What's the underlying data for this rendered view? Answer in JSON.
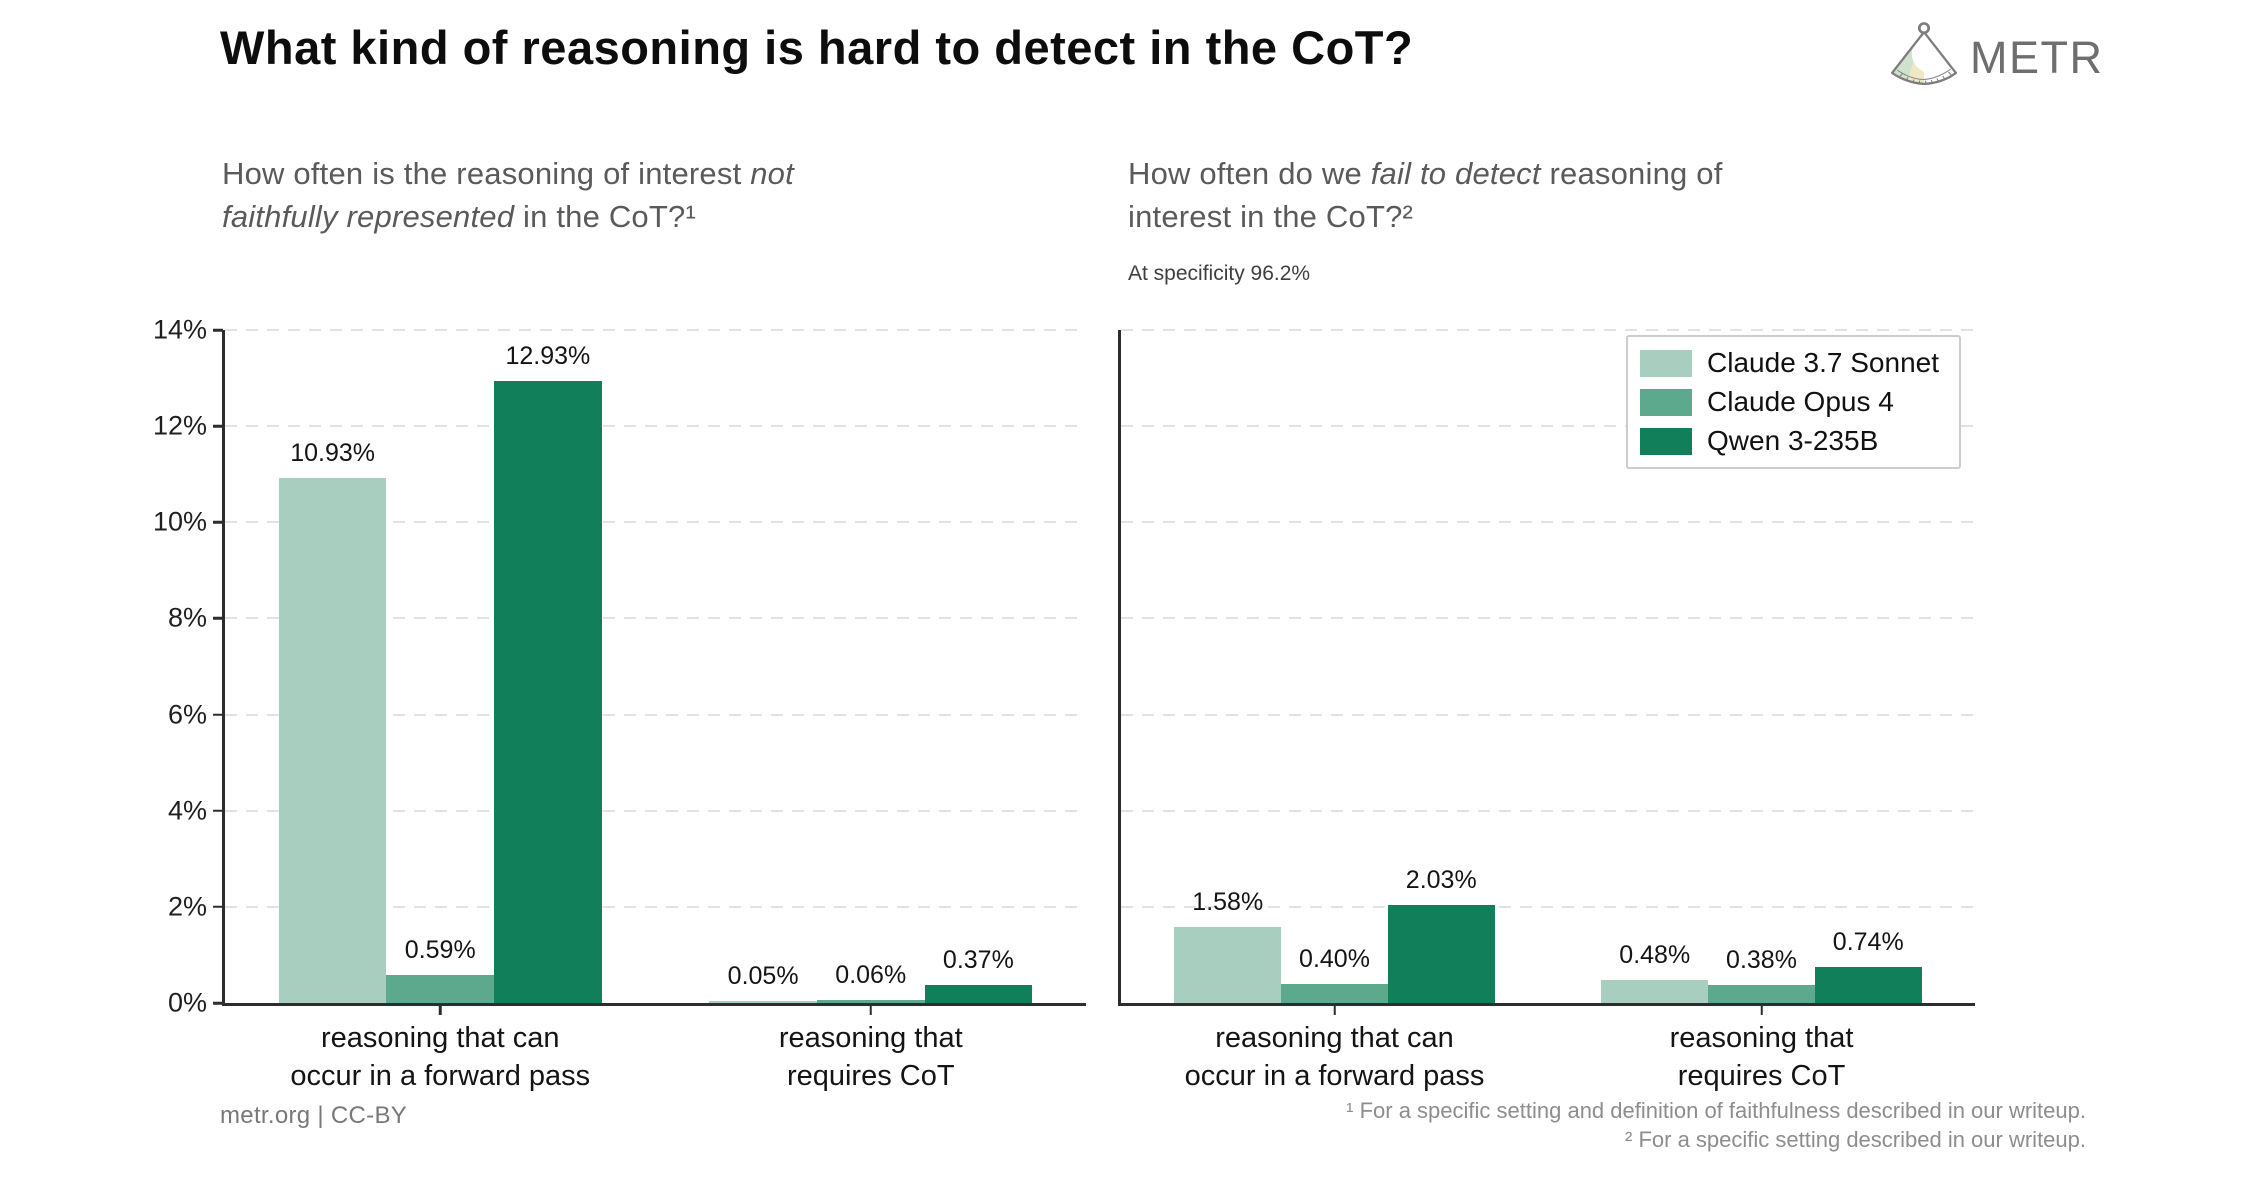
{
  "title": "What kind of reasoning is hard to detect in the CoT?",
  "logo": {
    "wordmark": "METR",
    "colors": {
      "outline": "#7d7d7d",
      "green": "#cfe2cb",
      "yellow": "#f0e8c5",
      "white": "#ffffff"
    }
  },
  "palette": {
    "axis": "#2d2d2d",
    "grid": "#e2e2e2",
    "subtitle_gray": "#5a5a5a",
    "sonnet": "#a8cec0",
    "opus": "#5ca98d",
    "qwen": "#117f5a"
  },
  "chart_data": [
    {
      "type": "bar",
      "title_parts": [
        {
          "text": "How often is the reasoning of interest ",
          "italic": false
        },
        {
          "text": "not",
          "italic": true
        },
        {
          "text": "\n",
          "italic": false
        },
        {
          "text": "faithfully represented",
          "italic": true
        },
        {
          "text": " in the CoT?¹",
          "italic": false
        }
      ],
      "note": "",
      "categories": [
        [
          "reasoning that can",
          "occur in a forward pass"
        ],
        [
          "reasoning that",
          "requires CoT"
        ]
      ],
      "series": [
        {
          "name": "Claude 3.7 Sonnet",
          "color": "#a8cec0",
          "values": [
            10.93,
            0.05
          ]
        },
        {
          "name": "Claude Opus 4",
          "color": "#5ca98d",
          "values": [
            0.59,
            0.06
          ]
        },
        {
          "name": "Qwen 3-235B",
          "color": "#117f5a",
          "values": [
            12.93,
            0.37
          ]
        }
      ],
      "value_label_format": "0.00%",
      "xlabel": "",
      "ylabel": "",
      "ylim": [
        0,
        14
      ],
      "yticks": [
        {
          "value": 0,
          "label": "0%"
        },
        {
          "value": 2,
          "label": "2%"
        },
        {
          "value": 4,
          "label": "4%"
        },
        {
          "value": 6,
          "label": "6%"
        },
        {
          "value": 8,
          "label": "8%"
        },
        {
          "value": 10,
          "label": "10%"
        },
        {
          "value": 12,
          "label": "12%"
        },
        {
          "value": 14,
          "label": "14%"
        }
      ],
      "show_ytick_labels": true,
      "grid": "horizontal-dashed",
      "legend_visible": false
    },
    {
      "type": "bar",
      "title_parts": [
        {
          "text": "How often do we ",
          "italic": false
        },
        {
          "text": "fail to detect",
          "italic": true
        },
        {
          "text": " reasoning of\ninterest in the CoT?²",
          "italic": false
        }
      ],
      "note": "At specificity 96.2%",
      "categories": [
        [
          "reasoning that can",
          "occur in a forward pass"
        ],
        [
          "reasoning that",
          "requires CoT"
        ]
      ],
      "series": [
        {
          "name": "Claude 3.7 Sonnet",
          "color": "#a8cec0",
          "values": [
            1.58,
            0.48
          ]
        },
        {
          "name": "Claude Opus 4",
          "color": "#5ca98d",
          "values": [
            0.4,
            0.38
          ]
        },
        {
          "name": "Qwen 3-235B",
          "color": "#117f5a",
          "values": [
            2.03,
            0.74
          ]
        }
      ],
      "value_label_format": "0.00%",
      "xlabel": "",
      "ylabel": "",
      "ylim": [
        0,
        14
      ],
      "yticks": [
        {
          "value": 0,
          "label": "0%"
        },
        {
          "value": 2,
          "label": "2%"
        },
        {
          "value": 4,
          "label": "4%"
        },
        {
          "value": 6,
          "label": "6%"
        },
        {
          "value": 8,
          "label": "8%"
        },
        {
          "value": 10,
          "label": "10%"
        },
        {
          "value": 12,
          "label": "12%"
        },
        {
          "value": 14,
          "label": "14%"
        }
      ],
      "show_ytick_labels": false,
      "grid": "horizontal-dashed",
      "legend_visible": true,
      "legend_position": "top-right"
    }
  ],
  "footer": {
    "credit": "metr.org  |  CC-BY",
    "footnotes": [
      "¹ For a specific setting and definition of faithfulness described in our writeup.",
      "² For a specific setting described in our writeup."
    ]
  }
}
